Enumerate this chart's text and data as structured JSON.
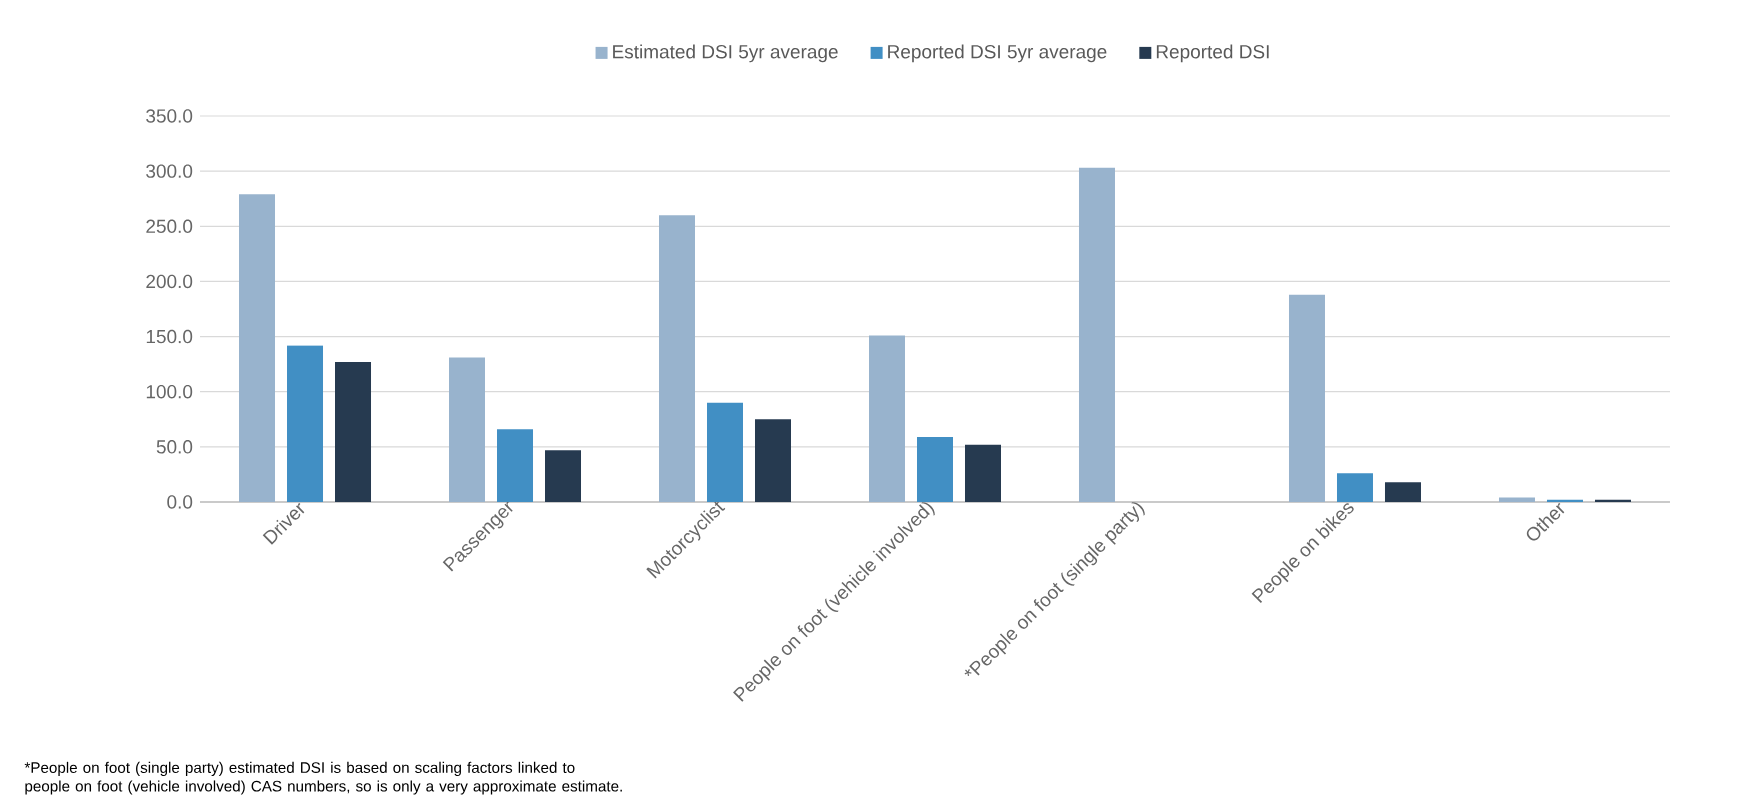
{
  "chart_data": {
    "type": "bar",
    "categories": [
      "Driver",
      "Passenger",
      "Motorcyclist",
      "People on foot (vehicle involved)",
      "*People on foot (single party)",
      "People on bikes",
      "Other"
    ],
    "series": [
      {
        "name": "Estimated DSI 5yr average",
        "color": "#98b3cd",
        "values": [
          279,
          131,
          260,
          151,
          303,
          188,
          4
        ]
      },
      {
        "name": "Reported DSI 5yr average",
        "color": "#418fc4",
        "values": [
          142,
          66,
          90,
          59,
          null,
          26,
          2
        ]
      },
      {
        "name": "Reported DSI",
        "color": "#263a50",
        "values": [
          127,
          47,
          75,
          52,
          null,
          18,
          2
        ]
      }
    ],
    "ylim": [
      0,
      350
    ],
    "yticks": [
      {
        "value": 0,
        "label": "0.0"
      },
      {
        "value": 50,
        "label": "50.0"
      },
      {
        "value": 100,
        "label": "100.0"
      },
      {
        "value": 150,
        "label": "150.0"
      },
      {
        "value": 200,
        "label": "200.0"
      },
      {
        "value": 250,
        "label": "250.0"
      },
      {
        "value": 300,
        "label": "300.0"
      },
      {
        "value": 350,
        "label": "350.0"
      }
    ],
    "grid": "y",
    "legend": "top",
    "annotations": [
      "*People on foot (single party) estimated DSI is based on scaling factors linked to people on foot (vehicle involved) CAS numbers, so is only a very approximate estimate."
    ]
  }
}
